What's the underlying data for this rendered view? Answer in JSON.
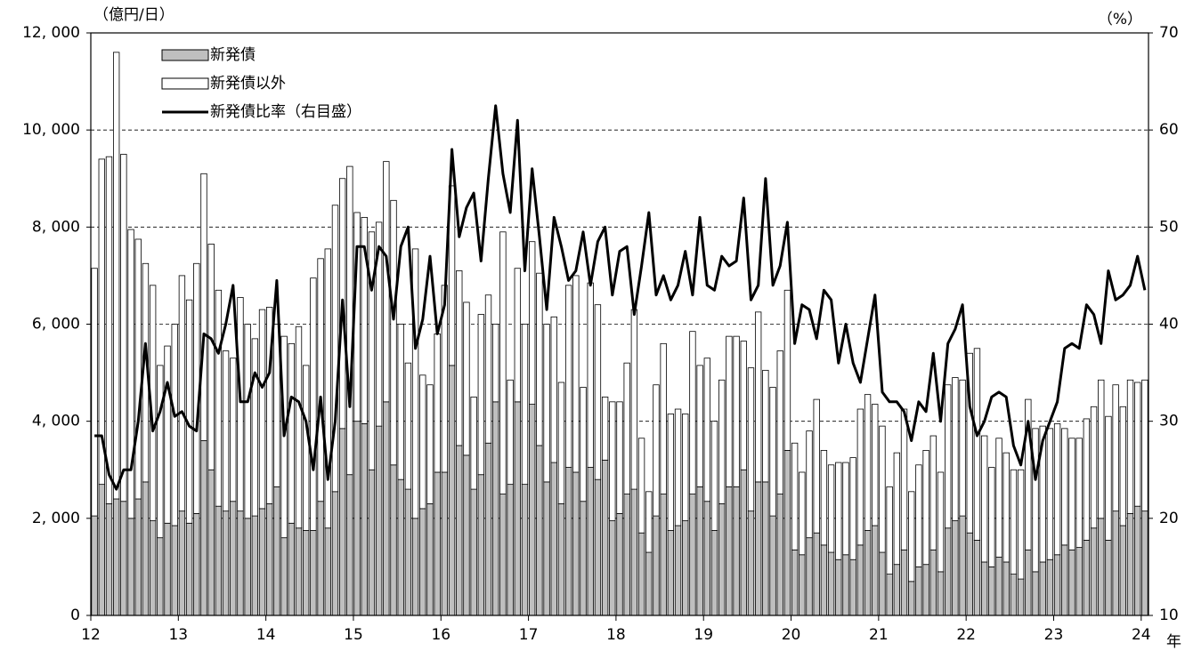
{
  "chart_data": {
    "type": "bar-line",
    "y_unit_label": "（億円/日）",
    "y2_unit_label": "（%）",
    "x_label": "年",
    "categories": [
      "12",
      null,
      null,
      null,
      null,
      null,
      null,
      null,
      null,
      null,
      null,
      null,
      "13",
      null,
      null,
      null,
      null,
      null,
      null,
      null,
      null,
      null,
      null,
      null,
      "14",
      null,
      null,
      null,
      null,
      null,
      null,
      null,
      null,
      null,
      null,
      null,
      "15",
      null,
      null,
      null,
      null,
      null,
      null,
      null,
      null,
      null,
      null,
      null,
      "16",
      null,
      null,
      null,
      null,
      null,
      null,
      null,
      null,
      null,
      null,
      null,
      "17",
      null,
      null,
      null,
      null,
      null,
      null,
      null,
      null,
      null,
      null,
      null,
      "18",
      null,
      null,
      null,
      null,
      null,
      null,
      null,
      null,
      null,
      null,
      null,
      "19",
      null,
      null,
      null,
      null,
      null,
      null,
      null,
      null,
      null,
      null,
      null,
      "20",
      null,
      null,
      null,
      null,
      null,
      null,
      null,
      null,
      null,
      null,
      null,
      "21",
      null,
      null,
      null,
      null,
      null,
      null,
      null,
      null,
      null,
      null,
      null,
      "22",
      null,
      null,
      null,
      null,
      null,
      null,
      null,
      null,
      null,
      null,
      null,
      "23",
      null,
      null,
      null,
      null,
      null,
      null,
      null,
      null,
      null,
      null,
      null,
      "24"
    ],
    "series": [
      {
        "name": "新発債",
        "color": "#bfbfbf",
        "values": [
          2050,
          2700,
          2300,
          2400,
          2350,
          2000,
          2400,
          2750,
          1950,
          1600,
          1900,
          1850,
          2150,
          1900,
          2100,
          3600,
          3000,
          2250,
          2150,
          2350,
          2150,
          2000,
          2050,
          2200,
          2300,
          2650,
          1600,
          1900,
          1800,
          1750,
          1750,
          2350,
          1800,
          2550,
          3850,
          2900,
          4000,
          3950,
          3000,
          3900,
          4400,
          3100,
          2800,
          2600,
          2000,
          2200,
          2300,
          2950,
          2950,
          5150,
          3500,
          3300,
          2600,
          2900,
          3550,
          4400,
          2500,
          2700,
          4400,
          2700,
          4350,
          3500,
          2750,
          3150,
          2300,
          3050,
          2950,
          2350,
          3050,
          2800,
          3200,
          1950,
          2100,
          2500,
          2600,
          1700,
          1300,
          2050,
          2500,
          1750,
          1850,
          1950,
          2500,
          2650,
          2350,
          1750,
          2300,
          2650,
          2650,
          3000,
          2150,
          2750,
          2750,
          2050,
          2500,
          3400,
          1350,
          1250,
          1600,
          1700,
          1450,
          1300,
          1150,
          1250,
          1150,
          1450,
          1750,
          1850,
          1300,
          850,
          1050,
          1350,
          700,
          1000,
          1050,
          1350,
          900,
          1800,
          1950,
          2050,
          1700,
          1550,
          1100,
          1000,
          1200,
          1100,
          850,
          750,
          1350,
          900,
          1100,
          1150,
          1250,
          1450,
          1350,
          1400,
          1550,
          1800,
          2000,
          1550,
          2150,
          1850,
          2100,
          2250,
          2150
        ]
      },
      {
        "name": "新発債以外",
        "color": "#ffffff",
        "values": [
          5100,
          6700,
          7150,
          9200,
          7150,
          5950,
          5350,
          4500,
          4850,
          3550,
          3650,
          4150,
          4850,
          4600,
          5150,
          5500,
          4650,
          4450,
          3300,
          2950,
          4400,
          4000,
          3650,
          4100,
          4050,
          3350,
          4150,
          3700,
          4150,
          3400,
          5200,
          5000,
          5750,
          5900,
          5150,
          6350,
          4300,
          4250,
          4900,
          4200,
          4950,
          5450,
          3200,
          2600,
          5550,
          2750,
          2450,
          2850,
          3850,
          3700,
          3600,
          3150,
          1900,
          3300,
          3050,
          1600,
          5400,
          2150,
          2750,
          3300,
          3350,
          3550,
          3250,
          3000,
          2500,
          3750,
          4050,
          2350,
          3800,
          3600,
          1300,
          2450,
          2300,
          2700,
          3700,
          1950,
          1250,
          2700,
          3100,
          2400,
          2400,
          2200,
          3350,
          2500,
          2950,
          2250,
          2550,
          3100,
          3100,
          2650,
          2950,
          3500,
          2300,
          2650,
          2950,
          3300,
          2200,
          1700,
          2200,
          2750,
          1950,
          1800,
          2000,
          1900,
          2100,
          2800,
          2800,
          2500,
          2600,
          1800,
          2300,
          2900,
          1850,
          2100,
          2350,
          2350,
          2050,
          2950,
          2950,
          2800,
          3700,
          3950,
          2600,
          2050,
          2450,
          2250,
          2150,
          2250,
          3100,
          2950,
          2800,
          2700,
          2700,
          2400,
          2300,
          2250,
          2500,
          2500,
          2850,
          2550,
          2600,
          2450,
          2750,
          2550,
          2700
        ]
      },
      {
        "name": "新発債比率（右目盛）",
        "color": "#000000",
        "axis": "y2",
        "values": [
          28.5,
          28.5,
          24.5,
          23,
          25,
          25,
          30,
          38,
          29,
          31,
          34,
          30.5,
          31,
          29.5,
          29,
          39,
          38.5,
          37,
          40,
          44,
          32,
          32,
          35,
          33.5,
          35,
          44.5,
          28.5,
          32.5,
          32,
          30,
          25,
          32.5,
          24,
          30,
          42.5,
          31.5,
          48,
          48,
          43.5,
          48,
          47,
          40.5,
          48,
          50,
          37.5,
          40.5,
          47,
          39,
          42,
          58,
          49,
          52,
          53.5,
          46.5,
          55,
          62.5,
          55.5,
          51.5,
          61,
          45.5,
          56,
          49,
          41.5,
          51,
          48,
          44.5,
          45.5,
          49.5,
          44,
          48.5,
          50,
          43,
          47.5,
          48,
          41,
          46,
          51.5,
          43,
          45,
          42.5,
          44,
          47.5,
          43,
          51,
          44,
          43.5,
          47,
          46,
          46.5,
          53,
          42.5,
          44,
          55,
          44,
          46,
          50.5,
          38,
          42,
          41.5,
          38.5,
          43.5,
          42.5,
          36,
          40,
          36,
          34,
          38.5,
          43,
          33,
          32,
          32,
          31,
          28,
          32,
          31,
          37,
          30,
          38,
          39.5,
          42,
          31.5,
          28.5,
          30,
          32.5,
          33,
          32.5,
          27.5,
          25.5,
          30,
          24,
          28,
          30,
          32,
          37.5,
          38,
          37.5,
          42,
          41,
          38,
          45.5,
          42.5,
          43,
          44,
          47,
          43.5
        ]
      }
    ],
    "ylim": [
      0,
      12000
    ],
    "yticks": [
      0,
      {
        "value": 2000,
        "label": "2, 000"
      },
      {
        "value": 4000,
        "label": "4, 000"
      },
      {
        "value": 6000,
        "label": "6, 000"
      },
      {
        "value": 8000,
        "label": "8, 000"
      },
      {
        "value": 10000,
        "label": "10, 000"
      },
      {
        "value": 12000,
        "label": "12, 000"
      }
    ],
    "y2lim": [
      10,
      70
    ],
    "y2ticks": [
      10,
      20,
      30,
      40,
      50,
      60,
      70
    ],
    "grid": true,
    "legend": "upper left"
  }
}
